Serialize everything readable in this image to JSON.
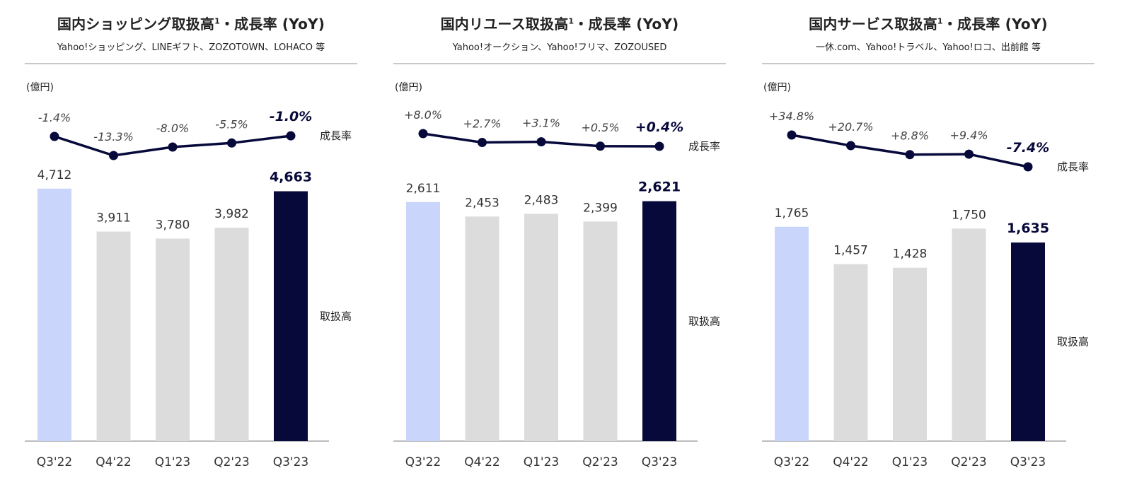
{
  "colors": {
    "highlight_prev": "#c9d5fb",
    "neutral": "#dcdcdc",
    "current": "#07093a",
    "line": "#07093a",
    "baseline": "#bdbdbd"
  },
  "chart_data": [
    {
      "type": "bar",
      "title": "国内ショッピング取扱高",
      "title_sup": "1",
      "title_suffix": "・成長率 (YoY)",
      "subtitle": "Yahoo!ショッピング、LINEギフト、ZOZOTOWN、LOHACO 等",
      "unit_label": "(億円)",
      "bar_series_label": "取扱高",
      "line_series_label": "成長率",
      "categories": [
        "Q3'22",
        "Q4'22",
        "Q1'23",
        "Q2'23",
        "Q3'23"
      ],
      "values": [
        4712,
        3911,
        3780,
        3982,
        4663
      ],
      "value_labels": [
        "4,712",
        "3,911",
        "3,780",
        "3,982",
        "4,663"
      ],
      "growth": [
        -1.4,
        -13.3,
        -8.0,
        -5.5,
        -1.0
      ],
      "growth_labels": [
        "-1.4%",
        "-13.3%",
        "-8.0%",
        "-5.5%",
        "-1.0%"
      ]
    },
    {
      "type": "bar",
      "title": "国内リユース取扱高",
      "title_sup": "1",
      "title_suffix": "・成長率 (YoY)",
      "subtitle": "Yahoo!オークション、Yahoo!フリマ、ZOZOUSED",
      "unit_label": "(億円)",
      "bar_series_label": "取扱高",
      "line_series_label": "成長率",
      "categories": [
        "Q3'22",
        "Q4'22",
        "Q1'23",
        "Q2'23",
        "Q3'23"
      ],
      "values": [
        2611,
        2453,
        2483,
        2399,
        2621
      ],
      "value_labels": [
        "2,611",
        "2,453",
        "2,483",
        "2,399",
        "2,621"
      ],
      "growth": [
        8.0,
        2.7,
        3.1,
        0.5,
        0.4
      ],
      "growth_labels": [
        "+8.0%",
        "+2.7%",
        "+3.1%",
        "+0.5%",
        "+0.4%"
      ]
    },
    {
      "type": "bar",
      "title": "国内サービス取扱高",
      "title_sup": "1",
      "title_suffix": "・成長率 (YoY)",
      "subtitle": "一休.com、Yahoo!トラベル、Yahoo!ロコ、出前館 等",
      "unit_label": "(億円)",
      "bar_series_label": "取扱高",
      "line_series_label": "成長率",
      "categories": [
        "Q3'22",
        "Q4'22",
        "Q1'23",
        "Q2'23",
        "Q3'23"
      ],
      "values": [
        1765,
        1457,
        1428,
        1750,
        1635
      ],
      "value_labels": [
        "1,765",
        "1,457",
        "1,428",
        "1,750",
        "1,635"
      ],
      "growth": [
        34.8,
        20.7,
        8.8,
        9.4,
        -7.4
      ],
      "growth_labels": [
        "+34.8%",
        "+20.7%",
        "+8.8%",
        "+9.4%",
        "-7.4%"
      ]
    }
  ]
}
